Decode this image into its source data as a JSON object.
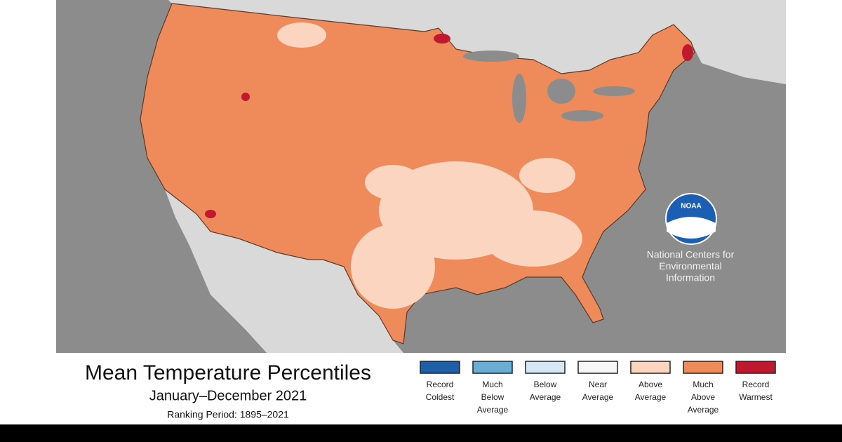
{
  "header": {
    "title": "Mean Temperature Percentiles",
    "subtitle": "January–December 2021",
    "ranking_period": "Ranking Period: 1895–2021"
  },
  "logo": {
    "text": "NOAA",
    "org_lines": [
      "National Centers for",
      "Environmental",
      "Information"
    ]
  },
  "legend": {
    "items": [
      {
        "lines": [
          "Record",
          "Coldest"
        ],
        "color": "#1f5fa8"
      },
      {
        "lines": [
          "Much",
          "Below",
          "Average"
        ],
        "color": "#6aaed6"
      },
      {
        "lines": [
          "Below",
          "Average"
        ],
        "color": "#d6e6f4"
      },
      {
        "lines": [
          "Near",
          "Average"
        ],
        "color": "#f7f7f7"
      },
      {
        "lines": [
          "Above",
          "Average"
        ],
        "color": "#fbd5c0"
      },
      {
        "lines": [
          "Much",
          "Above",
          "Average"
        ],
        "color": "#ef8a5a"
      },
      {
        "lines": [
          "Record",
          "Warmest"
        ],
        "color": "#c0182f"
      }
    ]
  }
}
